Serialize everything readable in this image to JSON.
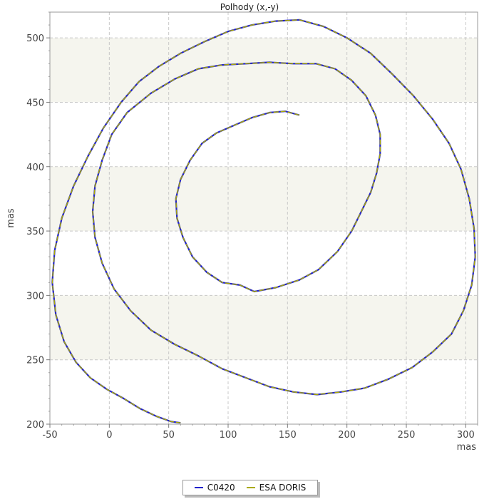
{
  "chart_data": {
    "type": "line",
    "title": "Polhody (x,-y)",
    "xlabel": "mas",
    "ylabel": "mas",
    "xlim": [
      -50,
      310
    ],
    "ylim": [
      200,
      520
    ],
    "xticks": [
      -50,
      0,
      50,
      100,
      150,
      200,
      250,
      300
    ],
    "yticks": [
      200,
      250,
      300,
      350,
      400,
      450,
      500
    ],
    "grid": true,
    "legend_position": "bottom",
    "series": [
      {
        "name": "C0420",
        "color": "#2222cc",
        "x": [
          160,
          148,
          135,
          120,
          105,
          90,
          78,
          68,
          60,
          56,
          57,
          62,
          70,
          82,
          95,
          110,
          122,
          140,
          160,
          176,
          192,
          204,
          212,
          220,
          225,
          228,
          228,
          224,
          216,
          204,
          190,
          174,
          155,
          135,
          115,
          95,
          75,
          55,
          35,
          15,
          2,
          -6,
          -12,
          -14,
          -12,
          -6,
          4,
          18,
          35,
          55,
          75,
          95,
          115,
          135,
          155,
          175,
          195,
          215,
          235,
          255,
          272,
          288,
          298,
          305,
          308,
          307,
          303,
          296,
          286,
          272,
          256,
          238,
          220,
          200,
          180,
          160,
          140,
          120,
          100,
          80,
          60,
          42,
          25,
          10,
          -5,
          -18,
          -30,
          -40,
          -46,
          -48,
          -45,
          -38,
          -28,
          -16,
          -2,
          12,
          26,
          40,
          52,
          60
        ],
        "y": [
          440,
          443,
          442,
          438,
          432,
          426,
          418,
          405,
          390,
          375,
          360,
          345,
          330,
          318,
          310,
          308,
          303,
          306,
          312,
          320,
          334,
          350,
          365,
          380,
          395,
          410,
          425,
          440,
          455,
          467,
          476,
          480,
          480,
          481,
          480,
          479,
          476,
          468,
          457,
          442,
          425,
          405,
          385,
          365,
          345,
          325,
          305,
          288,
          273,
          262,
          253,
          243,
          236,
          229,
          225,
          223,
          225,
          228,
          235,
          244,
          256,
          270,
          288,
          308,
          330,
          352,
          375,
          398,
          418,
          437,
          455,
          472,
          488,
          500,
          509,
          514,
          513,
          510,
          505,
          497,
          488,
          478,
          466,
          450,
          430,
          408,
          385,
          360,
          335,
          310,
          285,
          264,
          248,
          236,
          227,
          220,
          212,
          206,
          202,
          201
        ]
      },
      {
        "name": "ESA DORIS",
        "color": "#aaaa00",
        "x": [
          160,
          148,
          135,
          120,
          105,
          90,
          78,
          68,
          60,
          56,
          57,
          62,
          70,
          82,
          95,
          110,
          122,
          140,
          160,
          176,
          192,
          204,
          212,
          220,
          225,
          228,
          228,
          224,
          216,
          204,
          190,
          174,
          155,
          135,
          115,
          95,
          75,
          55,
          35,
          15,
          2,
          -6,
          -12,
          -14,
          -12,
          -6,
          4,
          18,
          35,
          55,
          75,
          95,
          115,
          135,
          155,
          175,
          195,
          215,
          235,
          255,
          272,
          288,
          298,
          305,
          308,
          307,
          303,
          296,
          286,
          272,
          256,
          238,
          220,
          200,
          180,
          160,
          140,
          120,
          100,
          80,
          60,
          42,
          25,
          10,
          -5,
          -18,
          -30,
          -40,
          -46,
          -48,
          -45,
          -38,
          -28,
          -16,
          -2,
          12,
          26,
          40,
          52,
          60
        ],
        "y": [
          440,
          443,
          442,
          438,
          432,
          426,
          418,
          405,
          390,
          375,
          360,
          345,
          330,
          318,
          310,
          308,
          303,
          306,
          312,
          320,
          334,
          350,
          365,
          380,
          395,
          410,
          425,
          440,
          455,
          467,
          476,
          480,
          480,
          481,
          480,
          479,
          476,
          468,
          457,
          442,
          425,
          405,
          385,
          365,
          345,
          325,
          305,
          288,
          273,
          262,
          253,
          243,
          236,
          229,
          225,
          223,
          225,
          228,
          235,
          244,
          256,
          270,
          288,
          308,
          330,
          352,
          375,
          398,
          418,
          437,
          455,
          472,
          488,
          500,
          509,
          514,
          513,
          510,
          505,
          497,
          488,
          478,
          466,
          450,
          430,
          408,
          385,
          360,
          335,
          310,
          285,
          264,
          248,
          236,
          227,
          220,
          212,
          206,
          202,
          201
        ]
      }
    ]
  }
}
